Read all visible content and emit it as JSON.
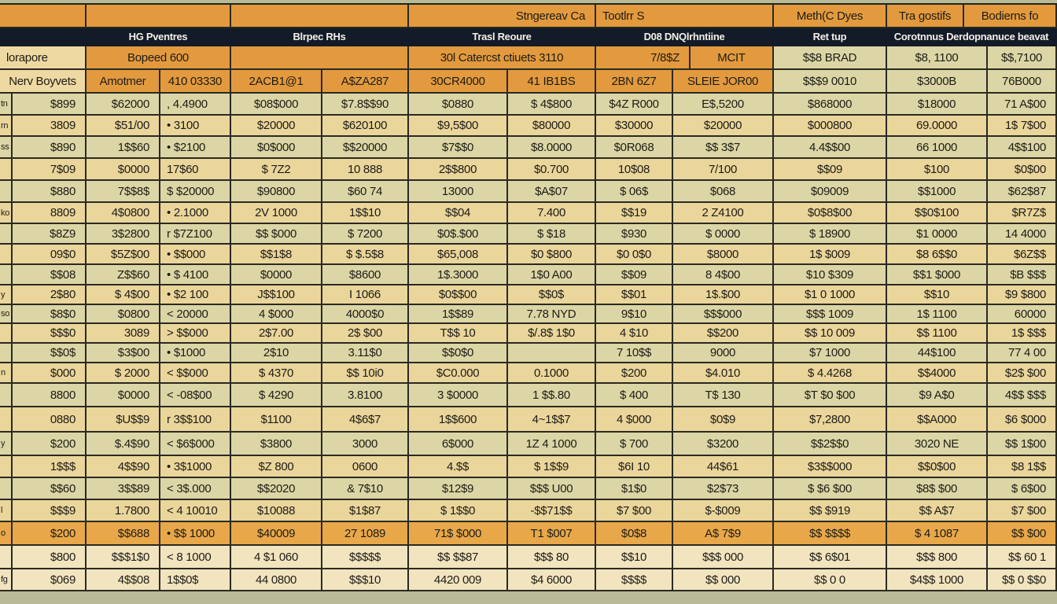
{
  "colors": {
    "header_orange": "#e39a3e",
    "header_navy": "#131a28",
    "row_beige": "#ead59b",
    "row_green": "#dcd6a6",
    "highlight_row": "#e8a84a"
  },
  "header": {
    "row1": [
      "",
      "",
      "",
      "Stngereav Ca",
      "Tootlrr S",
      "Meth(C Dyes",
      "Tra gostifs",
      "Bodierns fo"
    ],
    "row2": [
      "HG Pventres",
      "Blrpec RHs",
      "Trasl Reoure",
      "D08 DNQlrhntiine",
      "Ret tup",
      "Corotnnus Derdopnanuce beavat"
    ],
    "row3": [
      "lorapore",
      "Bopeed 600",
      "",
      "30l Catercst ctiuets 3110",
      "7/8$Z",
      "MCIT",
      "$$8 BRAD",
      "$8, 1100",
      "$$,7100"
    ],
    "row4": [
      "Nerv Boyvets",
      "Amotmer",
      "410 03330",
      "2ACB1@1",
      "A$ZA287",
      "30CR4000",
      "41 IB1BS",
      "2BN 6Z7",
      "SLEIE JOR00",
      "$$$9 0010",
      "$3000B",
      "76B000"
    ]
  },
  "rows": [
    [
      "tn",
      "$899",
      "$62000",
      ", 4.4900",
      "$08$000",
      "$7.8$$90",
      "$0880",
      "$ 4$800",
      "$4Z R000",
      "E$,5200",
      "$868000",
      "$18000",
      "71 A$00"
    ],
    [
      "rn",
      "3809",
      "$51/00",
      "• 3100",
      "$20000",
      "$620100",
      "$9,5$00",
      "$80000",
      "$30000",
      "$20000",
      "$000800",
      "69.0000",
      "1$ 7$00"
    ],
    [
      "ss",
      "$890",
      "1$$60",
      "• $2100",
      "$0$000",
      "$$20000",
      "$7$$0",
      "$8.0000",
      "$0R068",
      "$$ 3$7",
      "4.4$$00",
      "66 1000",
      "4$$100"
    ],
    [
      "",
      "7$09",
      "$0000",
      "17$60",
      "$ 7Z2",
      "10 888",
      "2$$800",
      "$0.700",
      "10$08",
      "7/100",
      "$$09",
      "$100",
      "$0$00"
    ],
    [
      "",
      "$880",
      "7$$8$",
      "$ $20000",
      "$90800",
      "$60 74",
      "13000",
      "$A$07",
      "$ 06$",
      "$068",
      "$09009",
      "$$1000",
      "$62$87"
    ],
    [
      "ko",
      "8809",
      "4$0800",
      "• 2.1000",
      "2V 1000",
      "1$$10",
      "$$04",
      "7.400",
      "$$19",
      "2 Z4100",
      "$0$8$00",
      "$$0$100",
      "$R7Z$"
    ],
    [
      "",
      "$8Z9",
      "3$2800",
      "r $7Z100",
      "$$ $000",
      "$ 7200",
      "$0$.$00",
      "$ $18",
      "$930",
      "$ 0000",
      "$ 18900",
      "$1 0000",
      "14 4000"
    ],
    [
      "",
      "09$0",
      "$5Z$00",
      "• $$000",
      "$$1$8",
      "$ $.5$8",
      "$65,008",
      "$0 $800",
      "$0 0$0",
      "$8000",
      "1$ $009",
      "$8 6$$0",
      "$6Z$$"
    ],
    [
      "",
      "$$08",
      "Z$$60",
      "• $ 4100",
      "$0000",
      "$8600",
      "1$.3000",
      "1$0 A00",
      "$$09",
      "8 4$00",
      "$10 $309",
      "$$1 $000",
      "$B $$$"
    ],
    [
      "y",
      "2$80",
      "$ 4$00",
      "• $2 100",
      "J$$100",
      "I 1066",
      "$0$$00",
      "$$0$",
      "$$01",
      "1$.$00",
      "$1 0 1000",
      "$$10",
      "$9 $800"
    ],
    [
      "so",
      "$8$0",
      "$0800",
      "< 20000",
      "4 $000",
      "4000$0",
      "1$$89",
      "7.78 NYD",
      "9$10",
      "$$$000",
      "$$$ 1009",
      "1$ 1100",
      "60000"
    ],
    [
      "",
      "$$$0",
      "3089",
      "> $$000",
      "2$7.00",
      "2$ $00",
      "T$$ 10",
      "$/.8$ 1$0",
      "4 $10",
      "$$200",
      "$$ 10 009",
      "$$ 1100",
      "1$ $$$"
    ],
    [
      "",
      "$$0$",
      "$3$00",
      "• $1000",
      "2$10",
      "3.11$0",
      "$$0$0",
      "",
      "7 10$$",
      "9000",
      "$7 1000",
      "44$100",
      "77 4 00"
    ],
    [
      "n",
      "$000",
      "$ 2000",
      "< $$000",
      "$ 4370",
      "$$ 10i0",
      "$C0.000",
      "0.1000",
      "$200",
      "$4.010",
      "$ 4.4268",
      "$$4000",
      "$2$ $00"
    ],
    [
      "",
      "8800",
      "$0000",
      "< -08$00",
      "$ 4290",
      "3.8100",
      "3 $0000",
      "1 $$.80",
      "$ 400",
      "T$ 130",
      "$T $0 $00",
      "$9 A$0",
      "4$$ $$$"
    ],
    [
      "",
      "0880",
      "$U$$9",
      "r 3$$100",
      "$1100",
      "4$6$7",
      "1$$600",
      "4~1$$7",
      "4 $000",
      "$0$9",
      "$7,2800",
      "$$A000",
      "$6 $000"
    ],
    [
      "y",
      "$200",
      "$.4$90",
      "< $6$000",
      "$3800",
      "3000",
      "6$000",
      "1Z 4 1000",
      "$ 700",
      "$3200",
      "$$2$$0",
      "3020 NE",
      "$$ 1$00"
    ],
    [
      "",
      "1$$$",
      "4$$90",
      "• 3$1000",
      "$Z 800",
      "0600",
      "4.$$",
      "$ 1$$9",
      "$6I 10",
      "44$61",
      "$3$$000",
      "$$0$00",
      "$8 1$$"
    ],
    [
      "",
      "$$60",
      "3$$89",
      "< 3$.000",
      "$$2020",
      "& 7$10",
      "$12$9",
      "$$$ U00",
      "$1$0",
      "$2$73",
      "$ $6 $00",
      "$8$ $00",
      "$ 6$00"
    ],
    [
      "l",
      "$$$9",
      "1.7800",
      "< 4 10010",
      "$10088",
      "$1$87",
      "$ 1$$0",
      "-$$71$$",
      "$7 $00",
      "$-$009",
      "$$ $919",
      "$$ A$7",
      "$7 $00"
    ],
    [
      "o",
      "$200",
      "$$688",
      "• $$ 1000",
      "$40009",
      "27 1089",
      "71$ $000",
      "T1 $007",
      "$0$8",
      "A$ 7$9",
      "$$ $$$$",
      "$ 4 1087",
      "$$ $00"
    ],
    [
      "",
      "$800",
      "$$$1$0",
      "< 8 1000",
      "4 $1 060",
      "$$$$$",
      "$$ $$87",
      "$$$ 80",
      "$$10",
      "$$$ 000",
      "$$ 6$01",
      "$$$ 800",
      "$$ 60 1"
    ],
    [
      "fg",
      "$069",
      "4$$08",
      "1$$0$",
      "44 0800",
      "$$$10",
      "4420 009",
      "$4 6000",
      "$$$$",
      "$$ 000",
      "$$ 0 0",
      "$4$$ 1000",
      "$$ 0 $$0"
    ]
  ]
}
